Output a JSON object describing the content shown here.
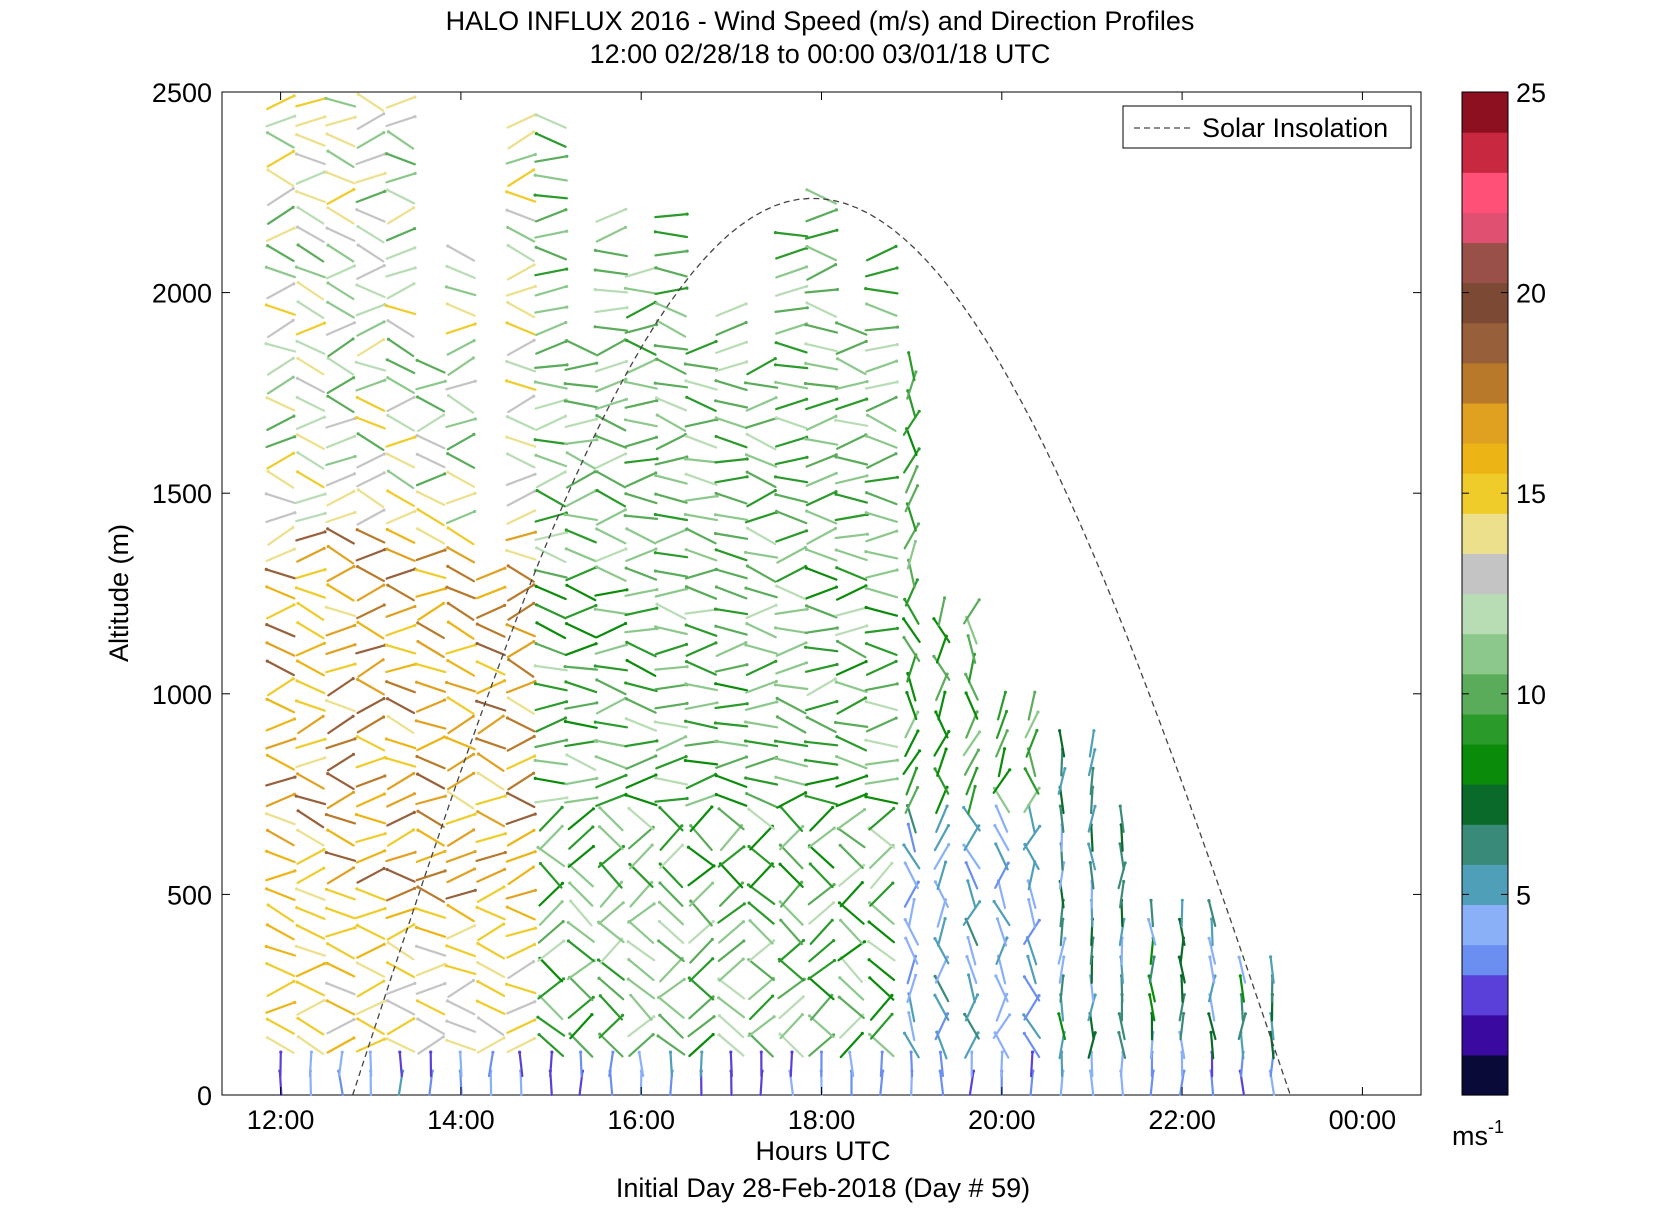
{
  "chart_data": {
    "type": "wind-barb-profile",
    "title": "HALO INFLUX 2016 - Wind Speed (m/s) and Direction Profiles",
    "subtitle": "12:00 02/28/18 to 00:00 03/01/18  UTC",
    "xlabel": "Hours UTC",
    "footer": "Initial Day 28-Feb-2018 (Day # 59)",
    "ylabel": "Altitude (m)",
    "x_ticks": [
      "12:00",
      "14:00",
      "16:00",
      "18:00",
      "20:00",
      "22:00",
      "00:00"
    ],
    "x_range_hours": [
      11.35,
      24.65
    ],
    "y_ticks": [
      0,
      500,
      1000,
      1500,
      2000,
      2500
    ],
    "ylim": [
      0,
      2500
    ],
    "legend": {
      "label": "Solar Insolation",
      "position": "top-right",
      "style": "dashed"
    },
    "colorbar": {
      "ticks": [
        5,
        10,
        15,
        20,
        25
      ],
      "range": [
        0,
        25
      ],
      "unit": "ms",
      "unit_exp": "-1",
      "colors": [
        "#0a0a38",
        "#3a0aa0",
        "#5a40d8",
        "#6a8ff0",
        "#8ab0f8",
        "#4f9fb8",
        "#3a8a7a",
        "#0a6a2a",
        "#0a8c0a",
        "#2a9a2a",
        "#5aac5a",
        "#8cc88c",
        "#b8dcb4",
        "#c4c4c4",
        "#ece08c",
        "#f0cc2a",
        "#ecb414",
        "#e0a020",
        "#b87a2a",
        "#98603a",
        "#7c4a34",
        "#985048",
        "#e05070",
        "#ff5078",
        "#c82840",
        "#8c1020"
      ]
    },
    "solar_insolation": {
      "start_hour": 12.8,
      "peak_hour": 17.9,
      "end_hour": 23.2,
      "peak_altitude_m": 2235
    }
  }
}
